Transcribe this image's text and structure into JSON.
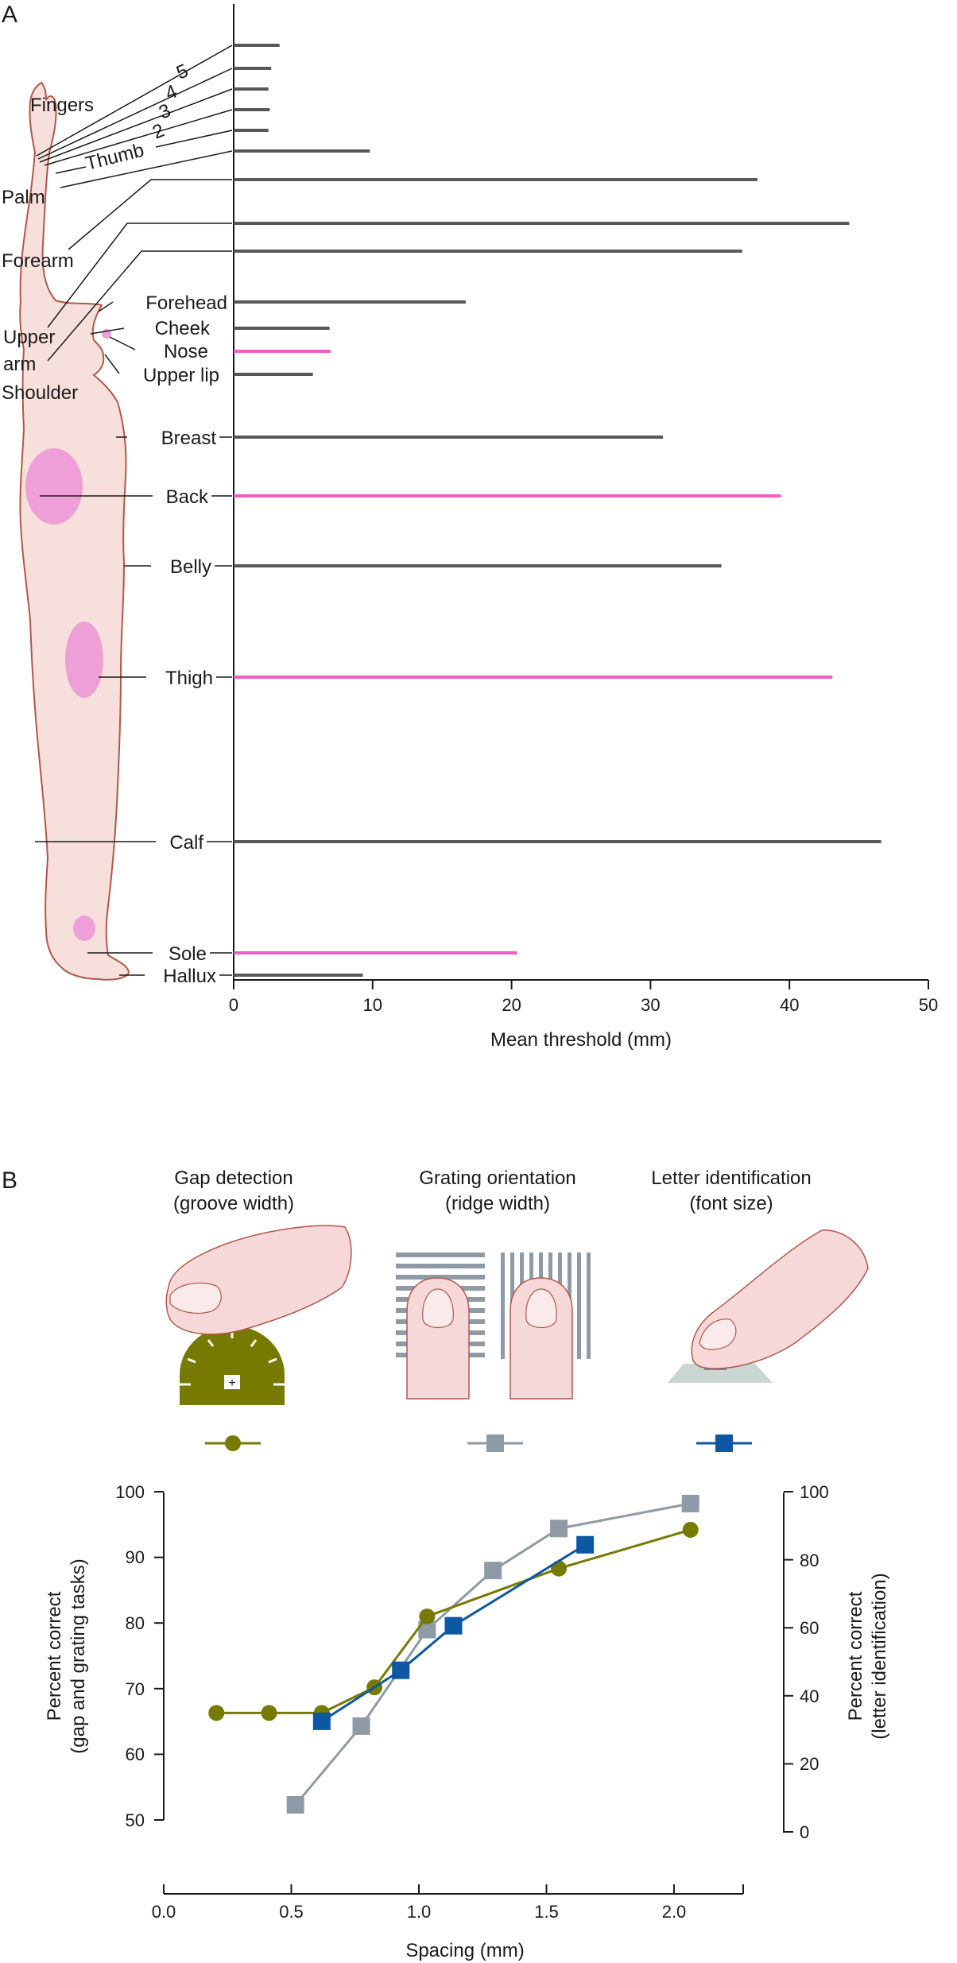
{
  "colors": {
    "gray_bar": "#585858",
    "pink_bar": "#ee5fc4",
    "skin": "#f7e0dc",
    "skin_outline": "#b0584a",
    "pink_region": "#ee9fd8",
    "gap_color": "#777a00",
    "grating_color": "#8e9aa6",
    "letter_color": "#0d57a3"
  },
  "panel_a": {
    "letter": "A",
    "chart_data": {
      "type": "bar",
      "orientation": "horizontal",
      "xlabel": "Mean threshold (mm)",
      "xlim": [
        0,
        50
      ],
      "xticks": [
        "0",
        "10",
        "20",
        "30",
        "40",
        "50"
      ],
      "categories": [
        "5",
        "4",
        "3",
        "2",
        "Thumb",
        "Palm",
        "Forearm",
        "Upper arm",
        "Shoulder",
        "Forehead",
        "Cheek",
        "Nose",
        "Upper lip",
        "Breast",
        "Back",
        "Belly",
        "Thigh",
        "Calf",
        "Sole",
        "Hallux"
      ],
      "values": [
        3.3,
        2.7,
        2.5,
        2.6,
        2.5,
        9.8,
        37.7,
        44.3,
        36.6,
        16.7,
        6.9,
        7.0,
        5.7,
        30.9,
        39.4,
        35.1,
        43.1,
        46.6,
        20.4,
        9.3
      ],
      "highlighted": [
        "Nose",
        "Back",
        "Thigh",
        "Sole"
      ],
      "group_label": "Fingers"
    }
  },
  "panel_b": {
    "letter": "B",
    "tasks": [
      {
        "title": "Gap detection",
        "subtitle": "(groove width)",
        "color": "#777a00",
        "marker": "circle"
      },
      {
        "title": "Grating orientation",
        "subtitle": "(ridge width)",
        "color": "#8e9aa6",
        "marker": "square"
      },
      {
        "title": "Letter identification",
        "subtitle": "(font size)",
        "color": "#0d57a3",
        "marker": "square"
      }
    ],
    "chart_data": {
      "type": "line",
      "xlabel": "Spacing (mm)",
      "xlim": [
        0,
        2.2
      ],
      "xticks": [
        "0.0",
        "0.5",
        "1.0",
        "1.5",
        "2.0"
      ],
      "ylabel_left": "Percent correct",
      "ylabel_left_sub": "(gap and grating tasks)",
      "ylim_left": [
        50,
        100
      ],
      "yticks_left": [
        "50",
        "60",
        "70",
        "80",
        "90",
        "100"
      ],
      "ylabel_right": "Percent correct",
      "ylabel_right_sub": "(letter identification)",
      "ylim_right": [
        0,
        100
      ],
      "yticks_right": [
        "0",
        "20",
        "40",
        "60",
        "80",
        "100"
      ],
      "series": [
        {
          "axis": "left",
          "x": [
            0.2,
            0.4,
            0.6,
            0.8,
            1.0,
            1.5,
            2.0
          ],
          "y": [
            66.3,
            66.3,
            66.3,
            70.2,
            81.0,
            88.3,
            94.2
          ]
        },
        {
          "axis": "left",
          "x": [
            0.5,
            0.75,
            1.0,
            1.25,
            1.5,
            2.0
          ],
          "y": [
            52.3,
            64.3,
            79.0,
            88.0,
            94.4,
            98.2
          ]
        },
        {
          "axis": "right",
          "x": [
            0.6,
            0.9,
            1.1,
            1.6
          ],
          "y": [
            32.5,
            47.5,
            60.6,
            84.4
          ]
        }
      ]
    }
  }
}
